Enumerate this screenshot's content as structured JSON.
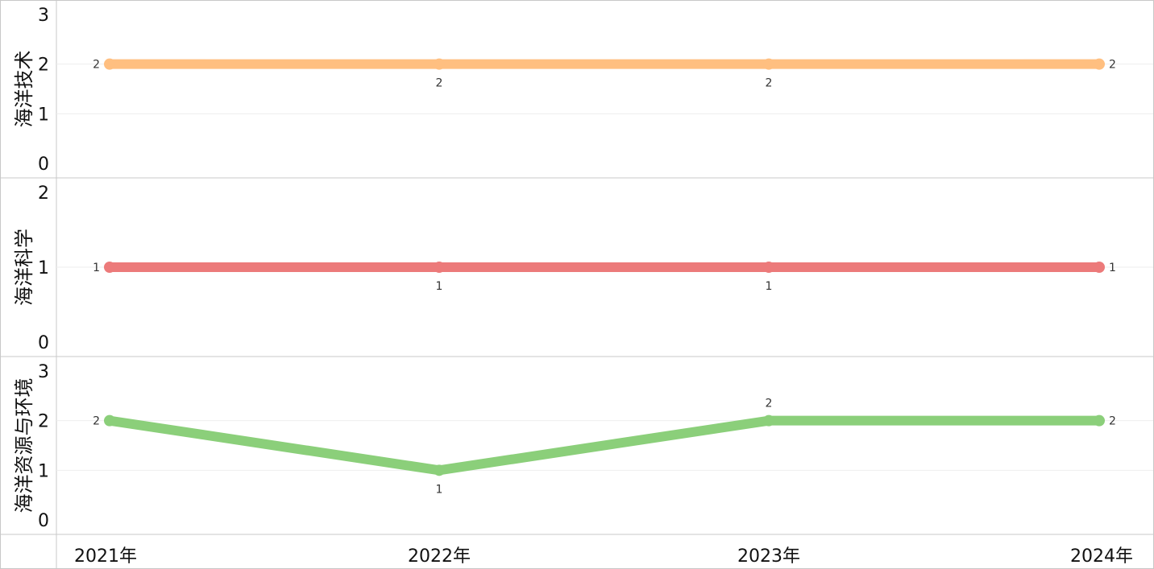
{
  "chart_data": {
    "type": "line",
    "categories": [
      "2021年",
      "2022年",
      "2023年",
      "2024年"
    ],
    "grid": true,
    "panels": [
      {
        "name": "海洋技术",
        "color": "#ffbf80",
        "values": [
          2,
          2,
          2,
          2
        ],
        "value_labels": [
          "2",
          "2",
          "2",
          "2"
        ],
        "ylim": [
          0,
          3
        ],
        "yticks": [
          "0",
          "1",
          "2",
          "3"
        ]
      },
      {
        "name": "海洋科学",
        "color": "#ec7a7a",
        "values": [
          1,
          1,
          1,
          1
        ],
        "value_labels": [
          "1",
          "1",
          "1",
          "1"
        ],
        "ylim": [
          0,
          2
        ],
        "yticks": [
          "0",
          "1",
          "2"
        ]
      },
      {
        "name": "海洋资源与环境",
        "color": "#8bcf7a",
        "values": [
          2,
          1,
          2,
          2
        ],
        "value_labels": [
          "2",
          "1",
          "2",
          "2"
        ],
        "ylim": [
          0,
          3
        ],
        "yticks": [
          "0",
          "1",
          "2",
          "3"
        ]
      }
    ]
  }
}
